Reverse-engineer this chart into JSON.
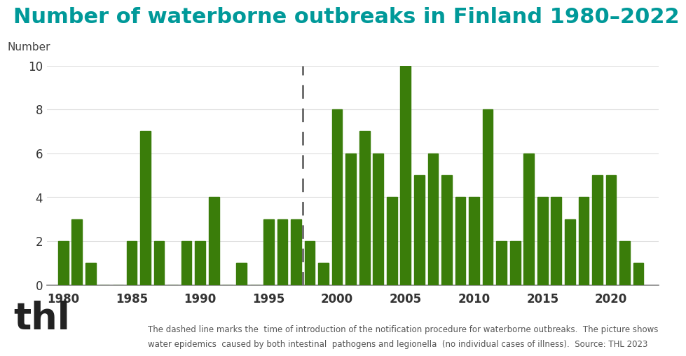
{
  "years": [
    1980,
    1981,
    1982,
    1983,
    1984,
    1985,
    1986,
    1987,
    1988,
    1989,
    1990,
    1991,
    1992,
    1993,
    1994,
    1995,
    1996,
    1997,
    1998,
    1999,
    2000,
    2001,
    2002,
    2003,
    2004,
    2005,
    2006,
    2007,
    2008,
    2009,
    2010,
    2011,
    2012,
    2013,
    2014,
    2015,
    2016,
    2017,
    2018,
    2019,
    2020,
    2021,
    2022
  ],
  "values": [
    2,
    3,
    1,
    0,
    0,
    2,
    7,
    2,
    0,
    2,
    2,
    4,
    0,
    1,
    0,
    3,
    3,
    3,
    2,
    1,
    8,
    6,
    7,
    6,
    4,
    10,
    5,
    6,
    5,
    4,
    4,
    8,
    2,
    2,
    6,
    4,
    4,
    3,
    4,
    5,
    5,
    2,
    1
  ],
  "bar_color": "#3a7d0a",
  "dashed_line_x": 1997.5,
  "title": "Number of waterborne outbreaks in Finland 1980–2022",
  "title_color": "#009999",
  "ylabel": "Number",
  "ylim": [
    0,
    10
  ],
  "yticks": [
    0,
    2,
    4,
    6,
    8,
    10
  ],
  "xticks": [
    1980,
    1985,
    1990,
    1995,
    2000,
    2005,
    2010,
    2015,
    2020
  ],
  "background_color": "#ffffff",
  "grid_color": "#dddddd",
  "caption_line1": "The dashed line marks the  time of introduction of the notification procedure for waterborne outbreaks.  The picture shows",
  "caption_line2": "water epidemics  caused by both intestinal  pathogens and legionella  (no individual cases of illness).  Source: THL 2023",
  "thl_text": "thl",
  "title_fontsize": 22,
  "ylabel_fontsize": 11,
  "tick_fontsize": 12,
  "caption_fontsize": 8.5
}
